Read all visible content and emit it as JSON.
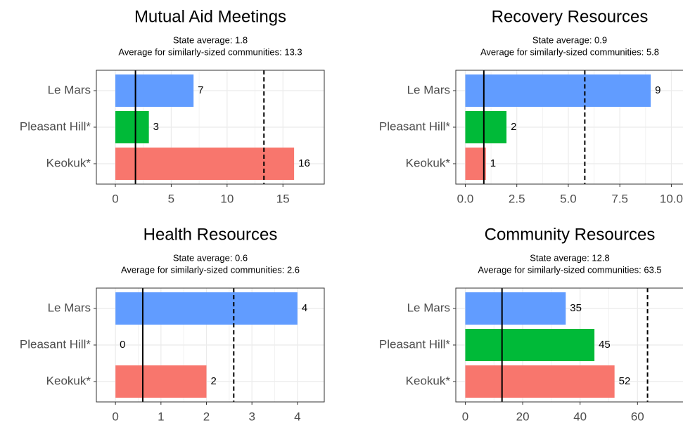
{
  "chart_data": [
    {
      "type": "bar",
      "orientation": "horizontal",
      "title": "Mutual Aid Meetings",
      "categories": [
        "Le Mars",
        "Pleasant Hill*",
        "Keokuk*"
      ],
      "values": [
        7,
        3,
        16
      ],
      "colors": [
        "#619CFF",
        "#00BA38",
        "#F8766D"
      ],
      "reference_lines": [
        {
          "value": 1.8,
          "label": "State average: 1.8",
          "style": "solid"
        },
        {
          "value": 13.3,
          "label": "Average for similarly-sized communities: 13.3",
          "style": "dashed"
        }
      ],
      "xlim": [
        -1.7,
        18.7
      ],
      "xticks": [
        0,
        5,
        10,
        15
      ],
      "grid": true
    },
    {
      "type": "bar",
      "orientation": "horizontal",
      "title": "Recovery Resources",
      "categories": [
        "Le Mars",
        "Pleasant Hill*",
        "Keokuk*"
      ],
      "values": [
        9,
        2,
        1
      ],
      "colors": [
        "#619CFF",
        "#00BA38",
        "#F8766D"
      ],
      "reference_lines": [
        {
          "value": 0.9,
          "label": "State average: 0.9",
          "style": "solid"
        },
        {
          "value": 5.8,
          "label": "Average for similarly-sized communities: 5.8",
          "style": "dashed"
        }
      ],
      "xlim": [
        -0.46,
        10.6
      ],
      "xticks": [
        {
          "value": 0,
          "label": "0.0"
        },
        {
          "value": 2.5,
          "label": "2.5"
        },
        {
          "value": 5,
          "label": "5.0"
        },
        {
          "value": 7.5,
          "label": "7.5"
        },
        {
          "value": 10,
          "label": "10.0"
        }
      ],
      "grid": true
    },
    {
      "type": "bar",
      "orientation": "horizontal",
      "title": "Health Resources",
      "categories": [
        "Le Mars",
        "Pleasant Hill*",
        "Keokuk*"
      ],
      "values": [
        4,
        0,
        2
      ],
      "colors": [
        "#619CFF",
        "#00BA38",
        "#F8766D"
      ],
      "reference_lines": [
        {
          "value": 0.6,
          "label": "State average: 0.6",
          "style": "solid"
        },
        {
          "value": 2.6,
          "label": "Average for similarly-sized communities: 2.6",
          "style": "dashed"
        }
      ],
      "xlim": [
        -0.42,
        4.59
      ],
      "xticks": [
        0,
        1,
        2,
        3,
        4
      ],
      "grid": true
    },
    {
      "type": "bar",
      "orientation": "horizontal",
      "title": "Community Resources",
      "categories": [
        "Le Mars",
        "Pleasant Hill*",
        "Keokuk*"
      ],
      "values": [
        35,
        45,
        52
      ],
      "colors": [
        "#619CFF",
        "#00BA38",
        "#F8766D"
      ],
      "reference_lines": [
        {
          "value": 12.8,
          "label": "State average: 12.8",
          "style": "solid"
        },
        {
          "value": 63.5,
          "label": "Average for similarly-sized communities: 63.5",
          "style": "dashed"
        }
      ],
      "xlim": [
        -3.3,
        76.1
      ],
      "xticks": [
        0,
        20,
        40,
        60
      ],
      "grid": true
    }
  ]
}
